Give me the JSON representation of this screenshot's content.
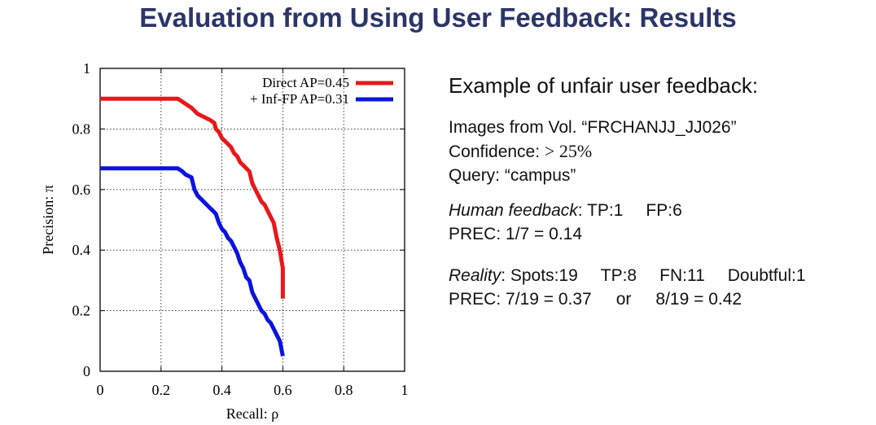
{
  "title": "Evaluation from Using User Feedback: Results",
  "chart_data": {
    "type": "line",
    "xlabel": "Recall: ρ",
    "ylabel": "Precision: π",
    "xlim": [
      0,
      1
    ],
    "ylim": [
      0,
      1
    ],
    "xticks": [
      "0",
      "0.2",
      "0.4",
      "0.6",
      "0.8",
      "1"
    ],
    "yticks": [
      "0",
      "0.2",
      "0.4",
      "0.6",
      "0.8",
      "1"
    ],
    "grid": true,
    "legend_position": "top-right",
    "series": [
      {
        "name": "Direct AP=0.45",
        "color": "#e8171b",
        "x": [
          0,
          0.1,
          0.2,
          0.255,
          0.27,
          0.3,
          0.32,
          0.34,
          0.36,
          0.375,
          0.38,
          0.39,
          0.4,
          0.41,
          0.42,
          0.43,
          0.44,
          0.45,
          0.46,
          0.47,
          0.48,
          0.49,
          0.5,
          0.51,
          0.52,
          0.53,
          0.54,
          0.55,
          0.56,
          0.57,
          0.58,
          0.59,
          0.6,
          0.6
        ],
        "y": [
          0.9,
          0.9,
          0.9,
          0.9,
          0.89,
          0.87,
          0.85,
          0.84,
          0.83,
          0.82,
          0.8,
          0.79,
          0.77,
          0.76,
          0.75,
          0.74,
          0.72,
          0.71,
          0.69,
          0.68,
          0.67,
          0.66,
          0.62,
          0.6,
          0.58,
          0.56,
          0.55,
          0.53,
          0.51,
          0.49,
          0.44,
          0.4,
          0.34,
          0.24
        ]
      },
      {
        "name": "+ Inf-FP AP=0.31",
        "color": "#0b13e0",
        "x": [
          0,
          0.1,
          0.2,
          0.255,
          0.27,
          0.28,
          0.3,
          0.31,
          0.32,
          0.34,
          0.36,
          0.37,
          0.38,
          0.39,
          0.4,
          0.41,
          0.42,
          0.43,
          0.44,
          0.45,
          0.46,
          0.47,
          0.48,
          0.49,
          0.5,
          0.51,
          0.52,
          0.53,
          0.54,
          0.55,
          0.56,
          0.57,
          0.58,
          0.59,
          0.6
        ],
        "y": [
          0.67,
          0.67,
          0.67,
          0.67,
          0.66,
          0.65,
          0.64,
          0.6,
          0.58,
          0.56,
          0.54,
          0.53,
          0.52,
          0.49,
          0.47,
          0.46,
          0.44,
          0.43,
          0.41,
          0.39,
          0.36,
          0.34,
          0.31,
          0.3,
          0.26,
          0.24,
          0.22,
          0.2,
          0.19,
          0.17,
          0.16,
          0.14,
          0.12,
          0.1,
          0.05
        ]
      }
    ]
  },
  "feedback": {
    "heading": "Example of unfair user feedback:",
    "images_line": "Images from Vol. “FRCHANJJ_JJ026”",
    "confidence_label": "Confidence:",
    "confidence_value": "> 25%",
    "query_line": "Query: “campus”",
    "human_label": "Human feedback",
    "human_counts_tp": ": TP:1",
    "human_counts_fp": "FP:6",
    "human_prec_label": "PREC:",
    "human_prec_value": "1/7 = 0.14",
    "reality_label": "Reality",
    "reality_spots": ": Spots:19",
    "reality_tp": "TP:8",
    "reality_fn": "FN:11",
    "reality_doubtful": "Doubtful:1",
    "reality_prec_label": "PREC:",
    "reality_prec_value1": "7/19 = 0.37",
    "reality_or": "or",
    "reality_prec_value2": "8/19 = 0.42"
  }
}
